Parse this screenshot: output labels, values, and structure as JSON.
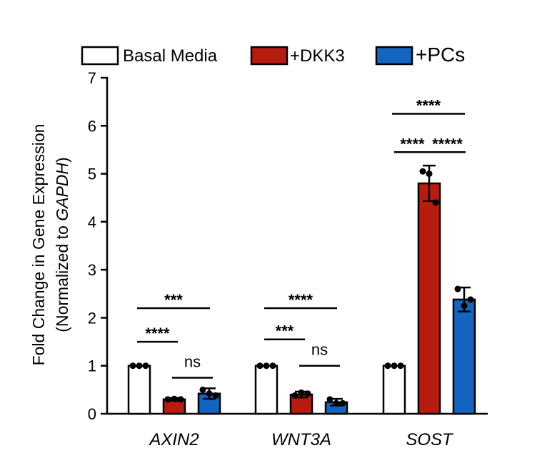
{
  "chart_data": {
    "type": "bar",
    "ylabel_line1": "Fold Change in Gene Expression",
    "ylabel_line2_prefix": "(Normalized to ",
    "ylabel_line2_gene": "GAPDH",
    "ylabel_line2_suffix": ")",
    "ylim": [
      0,
      7
    ],
    "yticks": [
      0,
      1,
      2,
      3,
      4,
      5,
      6,
      7
    ],
    "categories": [
      "AXIN2",
      "WNT3A",
      "SOST"
    ],
    "series": [
      {
        "name": "Basal Media",
        "color": "#ffffff",
        "values": [
          1.0,
          1.0,
          1.0
        ],
        "errors": [
          0,
          0,
          0
        ],
        "points": [
          [
            1.0,
            1.0,
            1.0
          ],
          [
            1.0,
            1.0,
            1.0
          ],
          [
            1.0,
            1.0,
            1.0
          ]
        ]
      },
      {
        "name": "+DKK3",
        "color": "#b71c0f",
        "values": [
          0.3,
          0.4,
          4.8
        ],
        "errors": [
          0.03,
          0.06,
          0.37
        ],
        "points": [
          [
            0.3,
            0.31,
            0.3
          ],
          [
            0.38,
            0.44,
            0.42
          ],
          [
            5.05,
            5.0,
            4.4
          ]
        ]
      },
      {
        "name": "+PCs",
        "color": "#1565c0",
        "values": [
          0.42,
          0.24,
          2.38
        ],
        "errors": [
          0.11,
          0.07,
          0.25
        ],
        "points": [
          [
            0.5,
            0.42,
            0.38
          ],
          [
            0.3,
            0.22,
            0.22
          ],
          [
            2.6,
            2.25,
            2.38
          ]
        ]
      }
    ],
    "significance": [
      {
        "category": 0,
        "from": 0,
        "to": 2,
        "label": "***",
        "level": 2.2
      },
      {
        "category": 0,
        "from": 0,
        "to": 1,
        "label": "****",
        "level": 1.5
      },
      {
        "category": 0,
        "from": 1,
        "to": 2,
        "label": "ns",
        "level": 0.75
      },
      {
        "category": 1,
        "from": 0,
        "to": 2,
        "label": "****",
        "level": 2.2
      },
      {
        "category": 1,
        "from": 0,
        "to": 1,
        "label": "***",
        "level": 1.55
      },
      {
        "category": 1,
        "from": 1,
        "to": 2,
        "label": "ns",
        "level": 1.0
      },
      {
        "category": 2,
        "from": 0,
        "to": 2,
        "label": "****",
        "level": 6.25
      },
      {
        "category": 2,
        "from": 0,
        "to": 1,
        "label": "****",
        "level": 5.45
      },
      {
        "category": 2,
        "from": 1,
        "to": 2,
        "label": "*****",
        "level": 5.45
      }
    ],
    "legend_position": "top",
    "grid": false
  }
}
